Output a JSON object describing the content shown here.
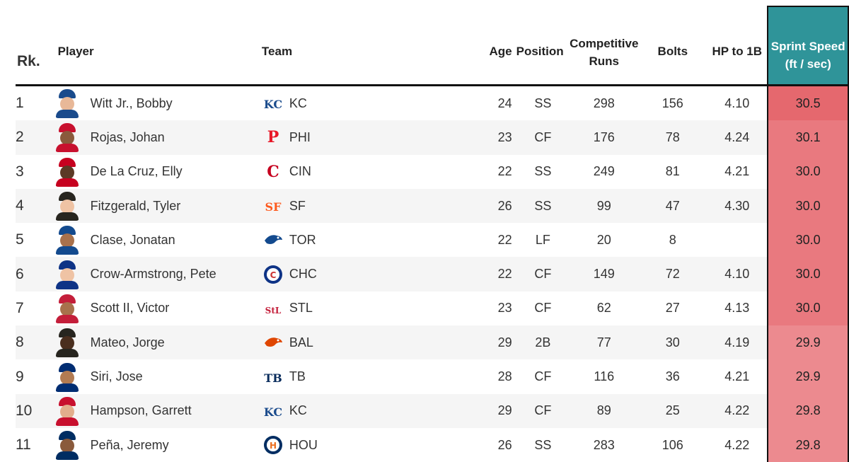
{
  "headers": {
    "rank": "Rk.",
    "player": "Player",
    "team": "Team",
    "age": "Age",
    "position": "Position",
    "runs_line1": "Competitive",
    "runs_line2": "Runs",
    "bolts": "Bolts",
    "hp": "HP to 1B",
    "sprint_line1": "Sprint Speed",
    "sprint_line2": "(ft / sec)"
  },
  "colors": {
    "sprint_header": "#2f9499",
    "sprint_high": "#e5686e",
    "sprint_mid": "#e9797f",
    "sprint_low": "#ec8a8f"
  },
  "rows": [
    {
      "rank": "1",
      "player": "Witt Jr., Bobby",
      "team": "KC",
      "age": "24",
      "position": "SS",
      "runs": "298",
      "bolts": "156",
      "hp": "4.10",
      "sprint": "30.5"
    },
    {
      "rank": "2",
      "player": "Rojas, Johan",
      "team": "PHI",
      "age": "23",
      "position": "CF",
      "runs": "176",
      "bolts": "78",
      "hp": "4.24",
      "sprint": "30.1"
    },
    {
      "rank": "3",
      "player": "De La Cruz, Elly",
      "team": "CIN",
      "age": "22",
      "position": "SS",
      "runs": "249",
      "bolts": "81",
      "hp": "4.21",
      "sprint": "30.0"
    },
    {
      "rank": "4",
      "player": "Fitzgerald, Tyler",
      "team": "SF",
      "age": "26",
      "position": "SS",
      "runs": "99",
      "bolts": "47",
      "hp": "4.30",
      "sprint": "30.0"
    },
    {
      "rank": "5",
      "player": "Clase, Jonatan",
      "team": "TOR",
      "age": "22",
      "position": "LF",
      "runs": "20",
      "bolts": "8",
      "hp": "",
      "sprint": "30.0"
    },
    {
      "rank": "6",
      "player": "Crow-Armstrong, Pete",
      "team": "CHC",
      "age": "22",
      "position": "CF",
      "runs": "149",
      "bolts": "72",
      "hp": "4.10",
      "sprint": "30.0"
    },
    {
      "rank": "7",
      "player": "Scott II, Victor",
      "team": "STL",
      "age": "23",
      "position": "CF",
      "runs": "62",
      "bolts": "27",
      "hp": "4.13",
      "sprint": "30.0"
    },
    {
      "rank": "8",
      "player": "Mateo, Jorge",
      "team": "BAL",
      "age": "29",
      "position": "2B",
      "runs": "77",
      "bolts": "30",
      "hp": "4.19",
      "sprint": "29.9"
    },
    {
      "rank": "9",
      "player": "Siri, Jose",
      "team": "TB",
      "age": "28",
      "position": "CF",
      "runs": "116",
      "bolts": "36",
      "hp": "4.21",
      "sprint": "29.9"
    },
    {
      "rank": "10",
      "player": "Hampson, Garrett",
      "team": "KC",
      "age": "29",
      "position": "CF",
      "runs": "89",
      "bolts": "25",
      "hp": "4.22",
      "sprint": "29.8"
    },
    {
      "rank": "11",
      "player": "Peña, Jeremy",
      "team": "HOU",
      "age": "26",
      "position": "SS",
      "runs": "283",
      "bolts": "106",
      "hp": "4.22",
      "sprint": "29.8"
    }
  ]
}
